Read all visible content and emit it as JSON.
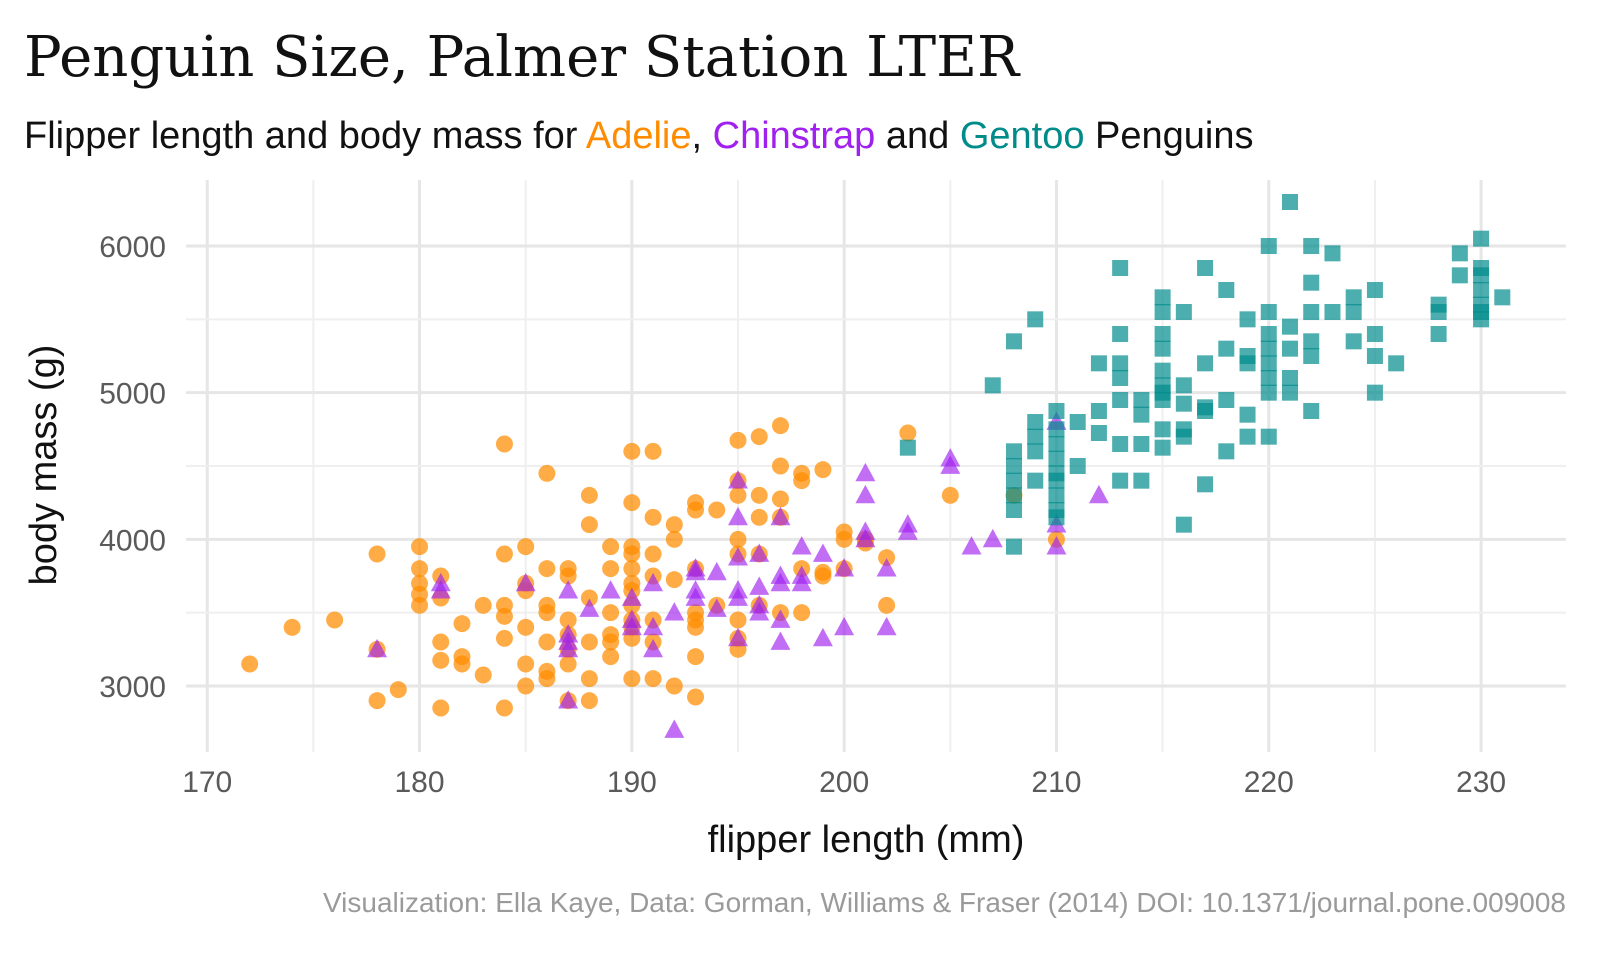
{
  "chart_data": {
    "type": "scatter",
    "title": "Penguin Size, Palmer Station LTER",
    "subtitle_parts": [
      {
        "text": "Flipper length and body mass for ",
        "color": "#111111"
      },
      {
        "text": "Adelie",
        "color": "#FF8C00"
      },
      {
        "text": ", ",
        "color": "#111111"
      },
      {
        "text": "Chinstrap",
        "color": "#A020F0"
      },
      {
        "text": " and ",
        "color": "#111111"
      },
      {
        "text": "Gentoo",
        "color": "#008B8B"
      },
      {
        "text": " Penguins",
        "color": "#111111"
      }
    ],
    "xlabel": "flipper length (mm)",
    "ylabel": "body mass (g)",
    "caption": "Visualization: Ella Kaye, Data: Gorman, Williams & Fraser (2014) DOI: 10.1371/journal.pone.009008",
    "xlim": [
      169,
      234
    ],
    "ylim": [
      2550,
      6450
    ],
    "x_ticks": [
      170,
      180,
      190,
      200,
      210,
      220,
      230
    ],
    "y_ticks": [
      3000,
      4000,
      5000,
      6000
    ],
    "grid": true,
    "legend": "none",
    "series": [
      {
        "name": "Adelie",
        "color": "#FF8C00",
        "marker": "circle",
        "points": [
          [
            172,
            3150
          ],
          [
            174,
            3400
          ],
          [
            176,
            3450
          ],
          [
            178,
            3900
          ],
          [
            178,
            3250
          ],
          [
            178,
            2900
          ],
          [
            179,
            2975
          ],
          [
            180,
            3950
          ],
          [
            180,
            3800
          ],
          [
            180,
            3700
          ],
          [
            180,
            3625
          ],
          [
            180,
            3550
          ],
          [
            181,
            3750
          ],
          [
            181,
            3600
          ],
          [
            181,
            3300
          ],
          [
            181,
            3175
          ],
          [
            181,
            2850
          ],
          [
            182,
            3425
          ],
          [
            182,
            3200
          ],
          [
            182,
            3150
          ],
          [
            183,
            3550
          ],
          [
            183,
            3075
          ],
          [
            184,
            4650
          ],
          [
            184,
            3900
          ],
          [
            184,
            3550
          ],
          [
            184,
            3475
          ],
          [
            184,
            3325
          ],
          [
            184,
            2850
          ],
          [
            185,
            3950
          ],
          [
            185,
            3700
          ],
          [
            185,
            3650
          ],
          [
            185,
            3400
          ],
          [
            185,
            3150
          ],
          [
            185,
            3000
          ],
          [
            186,
            4450
          ],
          [
            186,
            3800
          ],
          [
            186,
            3550
          ],
          [
            186,
            3500
          ],
          [
            186,
            3300
          ],
          [
            186,
            3100
          ],
          [
            186,
            3050
          ],
          [
            187,
            3800
          ],
          [
            187,
            3750
          ],
          [
            187,
            3450
          ],
          [
            187,
            3350
          ],
          [
            187,
            3250
          ],
          [
            187,
            3150
          ],
          [
            187,
            2900
          ],
          [
            188,
            4300
          ],
          [
            188,
            4100
          ],
          [
            188,
            3600
          ],
          [
            188,
            3300
          ],
          [
            188,
            3050
          ],
          [
            188,
            2900
          ],
          [
            189,
            3950
          ],
          [
            189,
            3800
          ],
          [
            189,
            3500
          ],
          [
            189,
            3350
          ],
          [
            189,
            3300
          ],
          [
            189,
            3200
          ],
          [
            190,
            4600
          ],
          [
            190,
            4250
          ],
          [
            190,
            3950
          ],
          [
            190,
            3900
          ],
          [
            190,
            3800
          ],
          [
            190,
            3700
          ],
          [
            190,
            3650
          ],
          [
            190,
            3550
          ],
          [
            190,
            3450
          ],
          [
            190,
            3400
          ],
          [
            190,
            3325
          ],
          [
            190,
            3050
          ],
          [
            191,
            4600
          ],
          [
            191,
            4150
          ],
          [
            191,
            3900
          ],
          [
            191,
            3750
          ],
          [
            191,
            3450
          ],
          [
            191,
            3300
          ],
          [
            191,
            3050
          ],
          [
            192,
            4100
          ],
          [
            192,
            4000
          ],
          [
            192,
            3725
          ],
          [
            192,
            3000
          ],
          [
            193,
            4250
          ],
          [
            193,
            4200
          ],
          [
            193,
            3800
          ],
          [
            193,
            3500
          ],
          [
            193,
            3450
          ],
          [
            193,
            3400
          ],
          [
            193,
            3200
          ],
          [
            193,
            2925
          ],
          [
            194,
            4200
          ],
          [
            194,
            3550
          ],
          [
            195,
            4675
          ],
          [
            195,
            4400
          ],
          [
            195,
            4300
          ],
          [
            195,
            4000
          ],
          [
            195,
            3900
          ],
          [
            195,
            3450
          ],
          [
            195,
            3325
          ],
          [
            195,
            3250
          ],
          [
            196,
            4700
          ],
          [
            196,
            4300
          ],
          [
            196,
            4150
          ],
          [
            196,
            3900
          ],
          [
            196,
            3550
          ],
          [
            197,
            4775
          ],
          [
            197,
            4500
          ],
          [
            197,
            4275
          ],
          [
            197,
            4150
          ],
          [
            197,
            3500
          ],
          [
            198,
            4450
          ],
          [
            198,
            4400
          ],
          [
            198,
            3800
          ],
          [
            198,
            3500
          ],
          [
            199,
            4475
          ],
          [
            199,
            3775
          ],
          [
            199,
            3750
          ],
          [
            200,
            4050
          ],
          [
            200,
            4000
          ],
          [
            200,
            3800
          ],
          [
            201,
            4000
          ],
          [
            201,
            3975
          ],
          [
            202,
            3875
          ],
          [
            202,
            3550
          ],
          [
            203,
            4725
          ],
          [
            205,
            4300
          ],
          [
            208,
            4300
          ],
          [
            210,
            4000
          ]
        ]
      },
      {
        "name": "Chinstrap",
        "color": "#A020F0",
        "marker": "triangle",
        "points": [
          [
            178,
            3250
          ],
          [
            181,
            3700
          ],
          [
            181,
            3650
          ],
          [
            185,
            3700
          ],
          [
            187,
            3650
          ],
          [
            187,
            3350
          ],
          [
            187,
            3300
          ],
          [
            187,
            3250
          ],
          [
            187,
            2900
          ],
          [
            188,
            3525
          ],
          [
            189,
            3650
          ],
          [
            190,
            3600
          ],
          [
            190,
            3450
          ],
          [
            190,
            3400
          ],
          [
            191,
            3700
          ],
          [
            191,
            3400
          ],
          [
            191,
            3250
          ],
          [
            192,
            3500
          ],
          [
            192,
            2700
          ],
          [
            193,
            3800
          ],
          [
            193,
            3775
          ],
          [
            193,
            3650
          ],
          [
            193,
            3600
          ],
          [
            194,
            3775
          ],
          [
            194,
            3525
          ],
          [
            195,
            4400
          ],
          [
            195,
            4150
          ],
          [
            195,
            3875
          ],
          [
            195,
            3650
          ],
          [
            195,
            3600
          ],
          [
            195,
            3325
          ],
          [
            196,
            3900
          ],
          [
            196,
            3675
          ],
          [
            196,
            3550
          ],
          [
            196,
            3500
          ],
          [
            197,
            4150
          ],
          [
            197,
            3750
          ],
          [
            197,
            3700
          ],
          [
            197,
            3450
          ],
          [
            197,
            3300
          ],
          [
            198,
            3950
          ],
          [
            198,
            3750
          ],
          [
            198,
            3700
          ],
          [
            199,
            3900
          ],
          [
            199,
            3325
          ],
          [
            200,
            3800
          ],
          [
            200,
            3400
          ],
          [
            201,
            4450
          ],
          [
            201,
            4300
          ],
          [
            201,
            4050
          ],
          [
            201,
            4000
          ],
          [
            202,
            3800
          ],
          [
            202,
            3400
          ],
          [
            203,
            4100
          ],
          [
            203,
            4050
          ],
          [
            205,
            4550
          ],
          [
            205,
            4500
          ],
          [
            206,
            3950
          ],
          [
            207,
            4000
          ],
          [
            210,
            4800
          ],
          [
            210,
            4100
          ],
          [
            210,
            3950
          ],
          [
            212,
            4300
          ]
        ]
      },
      {
        "name": "Gentoo",
        "color": "#008B8B",
        "marker": "square",
        "points": [
          [
            203,
            4625
          ],
          [
            207,
            5050
          ],
          [
            208,
            4600
          ],
          [
            208,
            4500
          ],
          [
            208,
            4400
          ],
          [
            208,
            4300
          ],
          [
            208,
            4200
          ],
          [
            208,
            3950
          ],
          [
            208,
            5350
          ],
          [
            209,
            5500
          ],
          [
            209,
            4800
          ],
          [
            209,
            4700
          ],
          [
            209,
            4600
          ],
          [
            209,
            4400
          ],
          [
            210,
            4875
          ],
          [
            210,
            4750
          ],
          [
            210,
            4650
          ],
          [
            210,
            4550
          ],
          [
            210,
            4450
          ],
          [
            210,
            4400
          ],
          [
            210,
            4300
          ],
          [
            210,
            4200
          ],
          [
            210,
            4150
          ],
          [
            211,
            4800
          ],
          [
            211,
            4500
          ],
          [
            212,
            5200
          ],
          [
            212,
            4875
          ],
          [
            212,
            4725
          ],
          [
            213,
            5850
          ],
          [
            213,
            5400
          ],
          [
            213,
            5200
          ],
          [
            213,
            5100
          ],
          [
            213,
            4950
          ],
          [
            213,
            4650
          ],
          [
            213,
            4400
          ],
          [
            214,
            4950
          ],
          [
            214,
            4850
          ],
          [
            214,
            4650
          ],
          [
            214,
            4400
          ],
          [
            215,
            5650
          ],
          [
            215,
            5550
          ],
          [
            215,
            5400
          ],
          [
            215,
            5300
          ],
          [
            215,
            5150
          ],
          [
            215,
            5050
          ],
          [
            215,
            5000
          ],
          [
            215,
            4950
          ],
          [
            215,
            4750
          ],
          [
            215,
            4625
          ],
          [
            216,
            5550
          ],
          [
            216,
            5050
          ],
          [
            216,
            4925
          ],
          [
            216,
            4750
          ],
          [
            216,
            4700
          ],
          [
            216,
            4100
          ],
          [
            217,
            5850
          ],
          [
            217,
            5200
          ],
          [
            217,
            4900
          ],
          [
            217,
            4875
          ],
          [
            217,
            4375
          ],
          [
            218,
            5700
          ],
          [
            218,
            5300
          ],
          [
            218,
            4950
          ],
          [
            218,
            4600
          ],
          [
            219,
            5500
          ],
          [
            219,
            5250
          ],
          [
            219,
            5200
          ],
          [
            219,
            4850
          ],
          [
            219,
            4700
          ],
          [
            220,
            6000
          ],
          [
            220,
            5550
          ],
          [
            220,
            5400
          ],
          [
            220,
            5300
          ],
          [
            220,
            5200
          ],
          [
            220,
            5100
          ],
          [
            220,
            5000
          ],
          [
            220,
            4700
          ],
          [
            221,
            6300
          ],
          [
            221,
            5450
          ],
          [
            221,
            5300
          ],
          [
            221,
            5100
          ],
          [
            221,
            5000
          ],
          [
            222,
            6000
          ],
          [
            222,
            5750
          ],
          [
            222,
            5550
          ],
          [
            222,
            5350
          ],
          [
            222,
            5250
          ],
          [
            222,
            4875
          ],
          [
            223,
            5950
          ],
          [
            223,
            5550
          ],
          [
            224,
            5650
          ],
          [
            224,
            5550
          ],
          [
            224,
            5350
          ],
          [
            225,
            5700
          ],
          [
            225,
            5400
          ],
          [
            225,
            5250
          ],
          [
            225,
            5000
          ],
          [
            226,
            5200
          ],
          [
            228,
            5600
          ],
          [
            228,
            5550
          ],
          [
            228,
            5400
          ],
          [
            229,
            5950
          ],
          [
            229,
            5800
          ],
          [
            230,
            6050
          ],
          [
            230,
            5850
          ],
          [
            230,
            5800
          ],
          [
            230,
            5700
          ],
          [
            230,
            5600
          ],
          [
            230,
            5550
          ],
          [
            230,
            5500
          ],
          [
            231,
            5650
          ]
        ]
      }
    ]
  }
}
